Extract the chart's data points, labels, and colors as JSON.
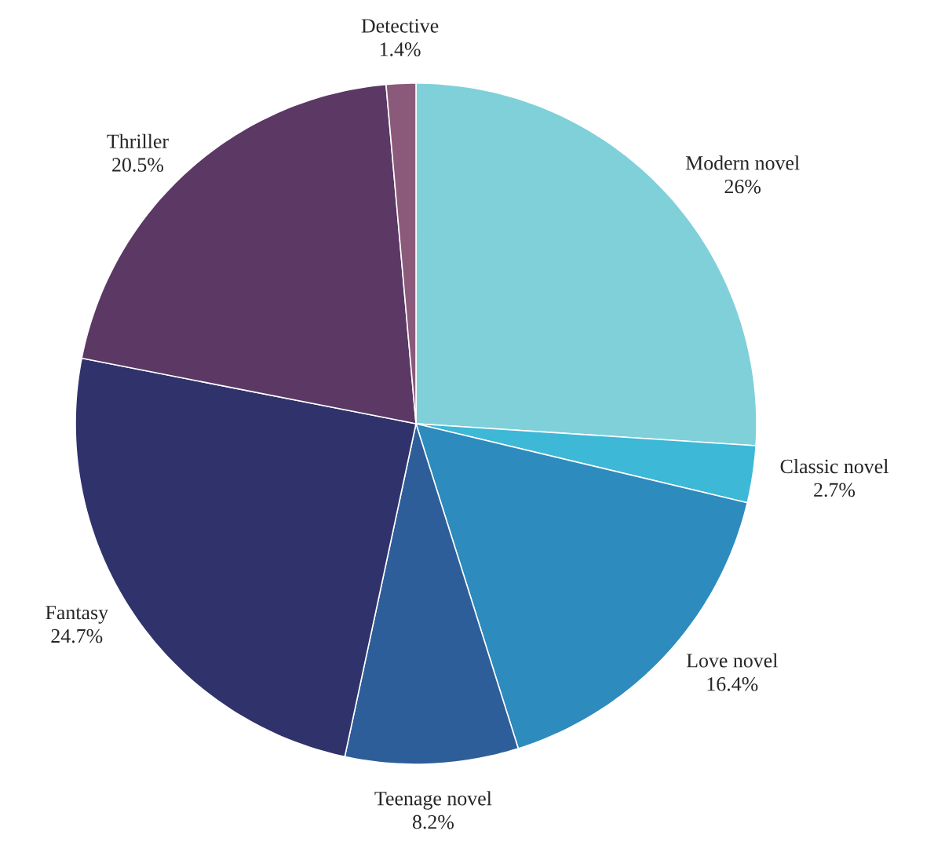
{
  "chart_data": {
    "type": "pie",
    "categories": [
      "Modern novel",
      "Classic novel",
      "Love novel",
      "Teenage novel",
      "Fantasy",
      "Thriller",
      "Detective"
    ],
    "values": [
      26,
      2.7,
      16.4,
      8.2,
      24.7,
      20.5,
      1.4
    ],
    "value_labels": [
      "26%",
      "2.7%",
      "16.4%",
      "8.2%",
      "24.7%",
      "20.5%",
      "1.4%"
    ],
    "colors": [
      "#80d0da",
      "#3db8d6",
      "#2d8bbd",
      "#2e5e9a",
      "#30336b",
      "#5c3865",
      "#8b5a7a"
    ]
  }
}
